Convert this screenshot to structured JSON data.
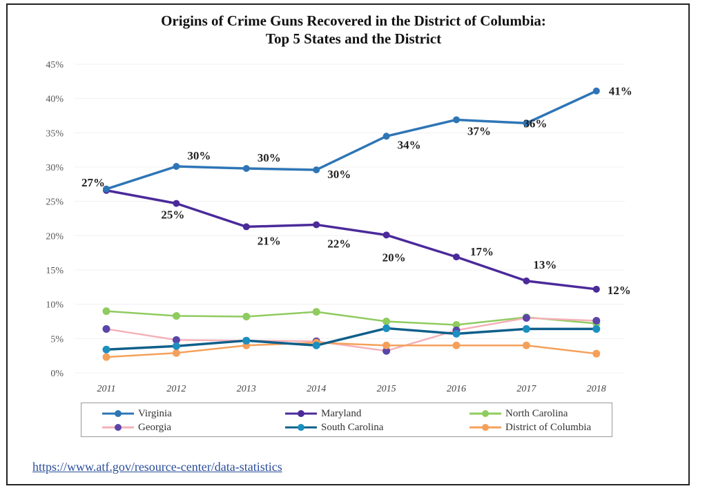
{
  "chart_data": {
    "type": "line",
    "title": "Origins of Crime Guns Recovered in the District of Columbia:",
    "subtitle": "Top 5 States and the District",
    "xlabel": "",
    "ylabel": "",
    "x": [
      "2011",
      "2012",
      "2013",
      "2014",
      "2015",
      "2016",
      "2017",
      "2018"
    ],
    "ylim": [
      0,
      45
    ],
    "yticks": [
      "0%",
      "5%",
      "10%",
      "15%",
      "20%",
      "25%",
      "30%",
      "35%",
      "40%",
      "45%"
    ],
    "grid": true,
    "legend_position": "bottom",
    "series": [
      {
        "name": "Virginia",
        "line_color": "#2e75b6",
        "marker_color": "#2e75b6",
        "values": [
          26.8,
          30.1,
          29.8,
          29.6,
          34.5,
          36.9,
          36.4,
          41.1
        ],
        "labels": [
          "27%",
          "30%",
          "30%",
          "30%",
          "34%",
          "37%",
          "36%",
          "41%"
        ]
      },
      {
        "name": "Maryland",
        "line_color": "#4b2a9a",
        "marker_color": "#4b2a9a",
        "values": [
          26.6,
          24.7,
          21.3,
          21.6,
          20.1,
          16.9,
          13.4,
          12.2
        ],
        "labels": [
          "",
          "25%",
          "21%",
          "22%",
          "20%",
          "17%",
          "13%",
          "12%"
        ]
      },
      {
        "name": "North Carolina",
        "line_color": "#8fcb5f",
        "marker_color": "#8fcb5f",
        "values": [
          9.0,
          8.3,
          8.2,
          8.9,
          7.5,
          7.0,
          8.1,
          7.2
        ],
        "labels": []
      },
      {
        "name": "Georgia",
        "line_color": "#f4b0b8",
        "marker_color": "#5a45a8",
        "values": [
          6.4,
          4.8,
          4.7,
          4.6,
          3.2,
          6.2,
          8.0,
          7.6
        ],
        "labels": []
      },
      {
        "name": "South Carolina",
        "line_color": "#0f5f8a",
        "marker_color": "#1b8fc0",
        "values": [
          3.4,
          3.9,
          4.7,
          4.0,
          6.5,
          5.7,
          6.4,
          6.4
        ],
        "labels": []
      },
      {
        "name": "District of Columbia",
        "line_color": "#f5a05a",
        "marker_color": "#f5a05a",
        "values": [
          2.3,
          2.9,
          4.0,
          4.4,
          4.0,
          4.0,
          4.0,
          2.8
        ],
        "labels": []
      }
    ]
  },
  "source": {
    "link_text": "https://www.atf.gov/resource-center/data-statistics"
  }
}
